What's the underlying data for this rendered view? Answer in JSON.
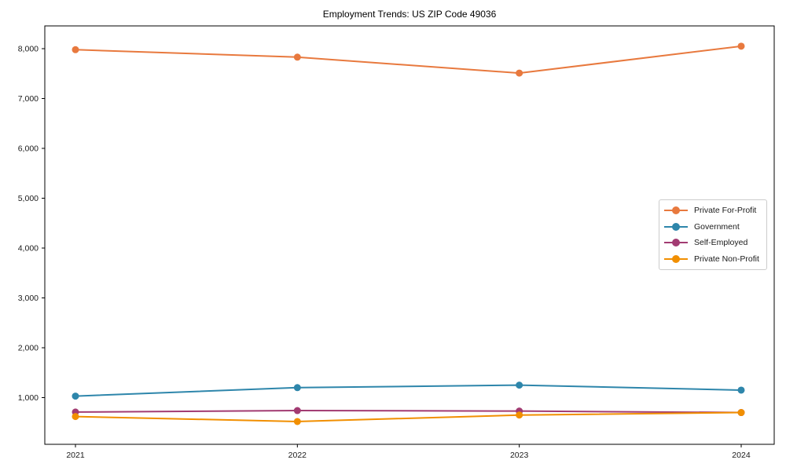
{
  "chart_data": {
    "type": "line",
    "title": "Employment Trends: US ZIP Code 49036",
    "xlabel": "",
    "ylabel": "",
    "categories": [
      "2021",
      "2022",
      "2023",
      "2024"
    ],
    "series": [
      {
        "name": "Private For-Profit",
        "color": "#e8793e",
        "values": [
          7980,
          7830,
          7510,
          8050
        ]
      },
      {
        "name": "Government",
        "color": "#2e86ab",
        "values": [
          1030,
          1200,
          1250,
          1150
        ]
      },
      {
        "name": "Self-Employed",
        "color": "#a23b72",
        "values": [
          710,
          740,
          730,
          700
        ]
      },
      {
        "name": "Private Non-Profit",
        "color": "#f18f01",
        "values": [
          620,
          520,
          650,
          700
        ]
      }
    ],
    "y_ticks": [
      1000,
      2000,
      3000,
      4000,
      5000,
      6000,
      7000,
      8000
    ],
    "ylim": [
      63,
      8460
    ],
    "grid": false,
    "legend_position": "center-right",
    "marker": "circle",
    "axis_color": "#000000",
    "tick_label_color": "#1a1a1a",
    "background_color": "#ffffff"
  }
}
